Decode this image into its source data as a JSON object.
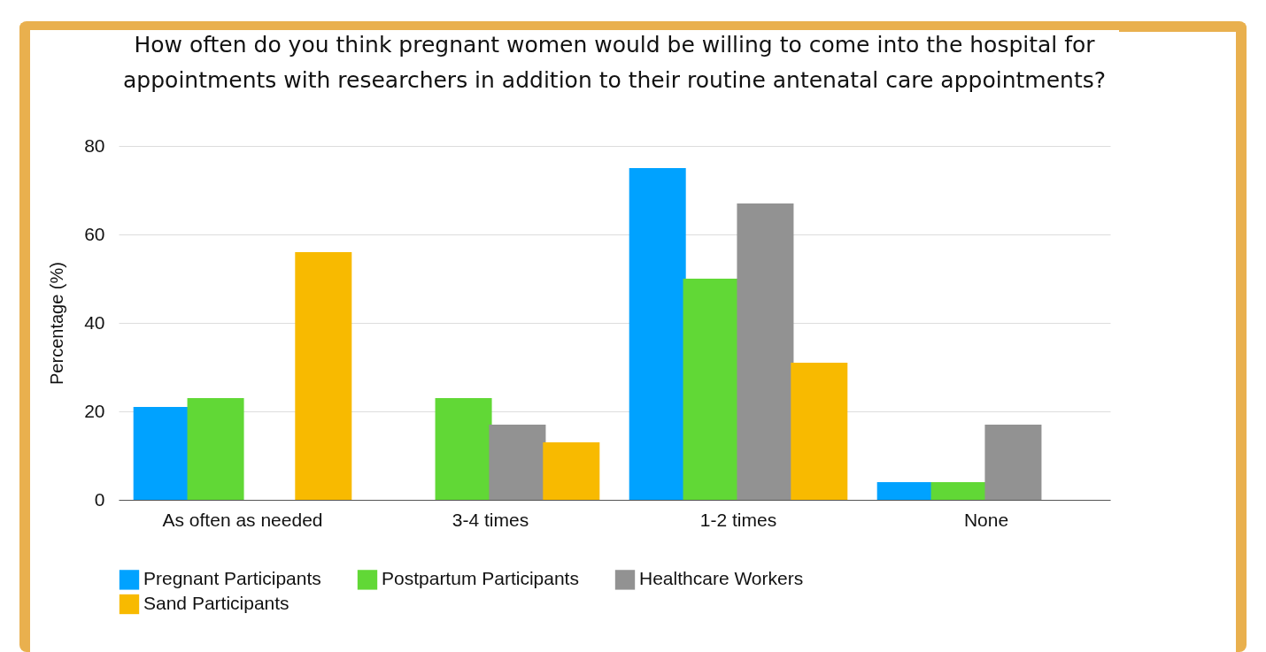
{
  "chart_data": {
    "type": "bar",
    "title": "How often do you think pregnant women would be willing to come into the hospital for appointments with researchers in addition to their routine antenatal care appointments?",
    "ylabel": "Percentage (%)",
    "categories": [
      "As often as needed",
      "3-4 times",
      "1-2 times",
      "None"
    ],
    "series": [
      {
        "name": "Pregnant Participants",
        "color": "#00a2ff",
        "values": [
          21,
          0,
          75,
          4
        ]
      },
      {
        "name": "Postpartum Participants",
        "color": "#61d836",
        "values": [
          23,
          23,
          50,
          4
        ]
      },
      {
        "name": "Healthcare Workers",
        "color": "#929292",
        "values": [
          0,
          17,
          67,
          17
        ]
      },
      {
        "name": "Sand Participants",
        "color": "#f8ba00",
        "values": [
          56,
          13,
          31,
          0
        ]
      }
    ],
    "ylim": [
      0,
      80
    ],
    "yticks": [
      0,
      20,
      40,
      60,
      80
    ],
    "grid": "y",
    "legend": "bottom"
  }
}
